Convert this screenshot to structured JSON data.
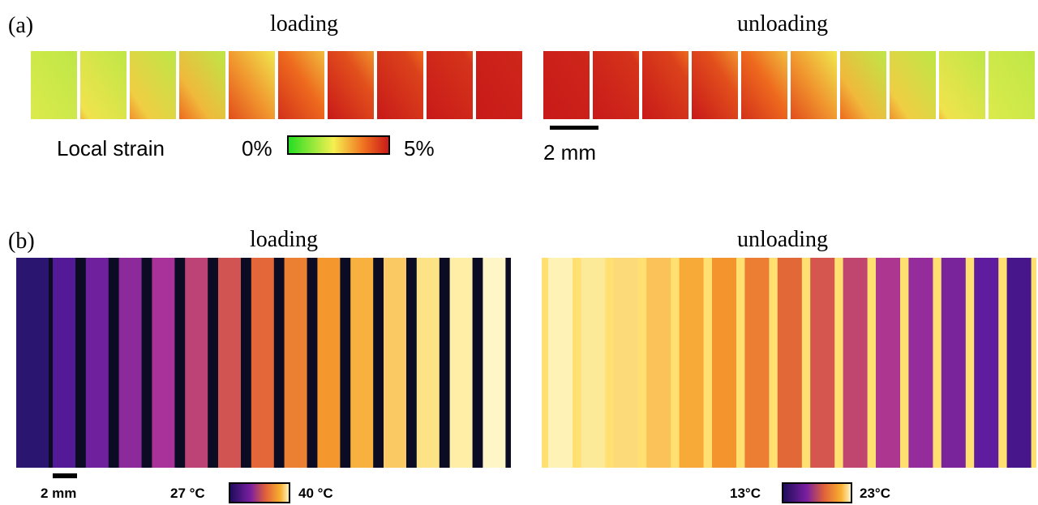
{
  "panel_a": {
    "label": "(a)",
    "loading_title": "loading",
    "unloading_title": "unloading",
    "colorbar_title": "Local strain",
    "colorbar_min": "0%",
    "colorbar_max": "5%",
    "scale_bar": "2 mm"
  },
  "panel_b": {
    "label": "(b)",
    "loading_title": "loading",
    "unloading_title": "unloading",
    "scale_bar": "2 mm",
    "loading_min": "27 °C",
    "loading_max": "40 °C",
    "unloading_min": "13°C",
    "unloading_max": "23°C"
  }
}
